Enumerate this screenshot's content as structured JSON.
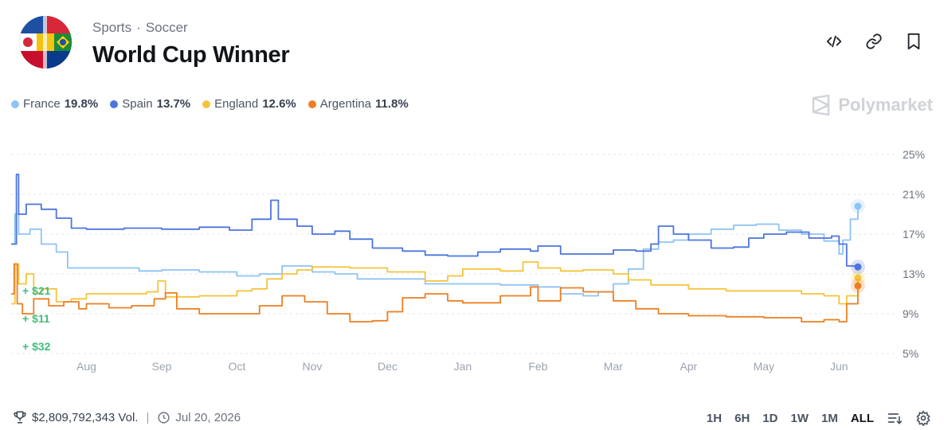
{
  "header": {
    "breadcrumb": [
      "Sports",
      "Soccer"
    ],
    "breadcrumb_sep": "·",
    "title": "World Cup Winner",
    "icons": [
      "code-embed-icon",
      "link-icon",
      "bookmark-icon"
    ]
  },
  "legend": [
    {
      "name": "France",
      "pct": "19.8%",
      "color": "#8ec3f5"
    },
    {
      "name": "Spain",
      "pct": "13.7%",
      "color": "#4c74dd"
    },
    {
      "name": "England",
      "pct": "12.6%",
      "color": "#f5c33b"
    },
    {
      "name": "Argentina",
      "pct": "11.8%",
      "color": "#ee7f22"
    }
  ],
  "brand": "Polymarket",
  "trade_labels": [
    "+ $21",
    "+ $11",
    "+ $32"
  ],
  "trade_color": "#3fbe7a",
  "chart_data": {
    "type": "line",
    "x_ticks": [
      "Aug",
      "Sep",
      "Oct",
      "Nov",
      "Dec",
      "Jan",
      "Feb",
      "Mar",
      "Apr",
      "May",
      "Jun"
    ],
    "y_ticks": [
      "25%",
      "21%",
      "17%",
      "13%",
      "9%",
      "5%"
    ],
    "ylim": [
      5,
      25
    ],
    "grid": "horizontal-dashed",
    "x_domain": [
      0,
      11.6
    ],
    "series": [
      {
        "name": "France",
        "color": "#8ec3f5",
        "last": 19.8,
        "points": [
          [
            0,
            16
          ],
          [
            0.05,
            19
          ],
          [
            0.1,
            17
          ],
          [
            0.25,
            17.5
          ],
          [
            0.4,
            16
          ],
          [
            0.6,
            15.2
          ],
          [
            0.75,
            13.6
          ],
          [
            1,
            13.6
          ],
          [
            1.5,
            13.6
          ],
          [
            1.7,
            13.3
          ],
          [
            2,
            13.4
          ],
          [
            2.5,
            13.2
          ],
          [
            3,
            12.8
          ],
          [
            3.3,
            13.0
          ],
          [
            3.6,
            13.8
          ],
          [
            4,
            13.2
          ],
          [
            4.3,
            13.0
          ],
          [
            4.6,
            12.5
          ],
          [
            5,
            12.5
          ],
          [
            5.5,
            12.0
          ],
          [
            6,
            12.0
          ],
          [
            6.5,
            11.9
          ],
          [
            7,
            11.7
          ],
          [
            7.3,
            11.0
          ],
          [
            7.6,
            10.8
          ],
          [
            7.8,
            11.2
          ],
          [
            8,
            12.0
          ],
          [
            8.2,
            13.5
          ],
          [
            8.4,
            15.5
          ],
          [
            8.6,
            16.2
          ],
          [
            8.8,
            16.4
          ],
          [
            9,
            17.0
          ],
          [
            9.3,
            17.5
          ],
          [
            9.6,
            17.9
          ],
          [
            9.9,
            18.0
          ],
          [
            10.2,
            17.4
          ],
          [
            10.5,
            17.0
          ],
          [
            10.8,
            16.3
          ],
          [
            11.0,
            15.0
          ],
          [
            11.05,
            16.4
          ],
          [
            11.15,
            18.5
          ],
          [
            11.25,
            19.8
          ]
        ]
      },
      {
        "name": "Spain",
        "color": "#4c74dd",
        "last": 13.7,
        "points": [
          [
            0,
            16
          ],
          [
            0.07,
            23
          ],
          [
            0.1,
            19
          ],
          [
            0.2,
            20
          ],
          [
            0.4,
            19.5
          ],
          [
            0.6,
            18.6
          ],
          [
            0.8,
            17.6
          ],
          [
            1,
            17.5
          ],
          [
            1.5,
            17.6
          ],
          [
            2,
            17.5
          ],
          [
            2.5,
            17.7
          ],
          [
            2.9,
            17.4
          ],
          [
            3.2,
            18.5
          ],
          [
            3.45,
            20.4
          ],
          [
            3.55,
            18.5
          ],
          [
            3.8,
            17.8
          ],
          [
            4,
            17.0
          ],
          [
            4.3,
            17.3
          ],
          [
            4.5,
            16.5
          ],
          [
            4.8,
            15.6
          ],
          [
            5.2,
            15.3
          ],
          [
            5.5,
            14.9
          ],
          [
            5.8,
            14.8
          ],
          [
            6.2,
            15.2
          ],
          [
            6.5,
            15.5
          ],
          [
            6.9,
            15.3
          ],
          [
            7,
            15.8
          ],
          [
            7.3,
            15.0
          ],
          [
            7.6,
            15.0
          ],
          [
            8,
            15.4
          ],
          [
            8.3,
            15.3
          ],
          [
            8.5,
            16.0
          ],
          [
            8.6,
            17.8
          ],
          [
            8.8,
            17.0
          ],
          [
            9,
            16.4
          ],
          [
            9.3,
            15.6
          ],
          [
            9.6,
            15.7
          ],
          [
            9.8,
            16.6
          ],
          [
            10,
            17.0
          ],
          [
            10.3,
            17.2
          ],
          [
            10.6,
            16.6
          ],
          [
            10.9,
            16.8
          ],
          [
            11.0,
            16.0
          ],
          [
            11.1,
            13.8
          ],
          [
            11.25,
            13.7
          ]
        ]
      },
      {
        "name": "England",
        "color": "#f5c33b",
        "last": 12.6,
        "points": [
          [
            0,
            10
          ],
          [
            0.05,
            14
          ],
          [
            0.1,
            12
          ],
          [
            0.2,
            13
          ],
          [
            0.3,
            11
          ],
          [
            0.4,
            11.5
          ],
          [
            0.6,
            10.2
          ],
          [
            0.8,
            10.5
          ],
          [
            1,
            11.0
          ],
          [
            1.5,
            11.0
          ],
          [
            1.8,
            11.2
          ],
          [
            1.95,
            12.3
          ],
          [
            2.05,
            10.7
          ],
          [
            2.5,
            10.8
          ],
          [
            3,
            11.3
          ],
          [
            3.2,
            11.5
          ],
          [
            3.4,
            12.5
          ],
          [
            3.6,
            13.0
          ],
          [
            3.8,
            13.4
          ],
          [
            4,
            13.7
          ],
          [
            4.5,
            13.6
          ],
          [
            5,
            13.2
          ],
          [
            5.5,
            12.3
          ],
          [
            5.8,
            12.8
          ],
          [
            6,
            13.5
          ],
          [
            6.5,
            13.3
          ],
          [
            6.8,
            14.2
          ],
          [
            7,
            13.6
          ],
          [
            7.3,
            13.3
          ],
          [
            7.6,
            13.4
          ],
          [
            8,
            13.0
          ],
          [
            8.2,
            12.4
          ],
          [
            8.5,
            11.9
          ],
          [
            9,
            11.5
          ],
          [
            9.5,
            11.3
          ],
          [
            10,
            11.3
          ],
          [
            10.5,
            11.0
          ],
          [
            10.8,
            10.8
          ],
          [
            11.0,
            10.0
          ],
          [
            11.1,
            10.8
          ],
          [
            11.25,
            12.6
          ]
        ]
      },
      {
        "name": "Argentina",
        "color": "#ee7f22",
        "last": 11.8,
        "points": [
          [
            0,
            11
          ],
          [
            0.04,
            14
          ],
          [
            0.08,
            10
          ],
          [
            0.15,
            9
          ],
          [
            0.3,
            10.5
          ],
          [
            0.5,
            9.8
          ],
          [
            0.7,
            10.2
          ],
          [
            0.9,
            9.5
          ],
          [
            1,
            10.0
          ],
          [
            1.3,
            9.6
          ],
          [
            1.6,
            9.8
          ],
          [
            1.9,
            10.5
          ],
          [
            2.05,
            11.1
          ],
          [
            2.2,
            9.5
          ],
          [
            2.5,
            9.0
          ],
          [
            3,
            9.0
          ],
          [
            3.3,
            9.8
          ],
          [
            3.6,
            10.8
          ],
          [
            3.9,
            10.2
          ],
          [
            4.2,
            9.0
          ],
          [
            4.5,
            8.2
          ],
          [
            4.8,
            8.3
          ],
          [
            5,
            9.2
          ],
          [
            5.2,
            10.6
          ],
          [
            5.5,
            11.0
          ],
          [
            5.8,
            10.3
          ],
          [
            6,
            10.1
          ],
          [
            6.5,
            10.8
          ],
          [
            6.9,
            11.7
          ],
          [
            7,
            10.3
          ],
          [
            7.3,
            11.6
          ],
          [
            7.6,
            11.2
          ],
          [
            8,
            10.3
          ],
          [
            8.3,
            9.5
          ],
          [
            8.6,
            9.0
          ],
          [
            9,
            8.8
          ],
          [
            9.5,
            8.7
          ],
          [
            10,
            8.6
          ],
          [
            10.5,
            8.2
          ],
          [
            10.8,
            8.4
          ],
          [
            11.0,
            8.2
          ],
          [
            11.1,
            10.0
          ],
          [
            11.25,
            11.8
          ]
        ]
      }
    ]
  },
  "footer": {
    "volume": "$2,809,792,343 Vol.",
    "date": "Jul 20, 2026"
  },
  "ranges": [
    "1H",
    "6H",
    "1D",
    "1W",
    "1M",
    "ALL"
  ],
  "active_range": "ALL"
}
